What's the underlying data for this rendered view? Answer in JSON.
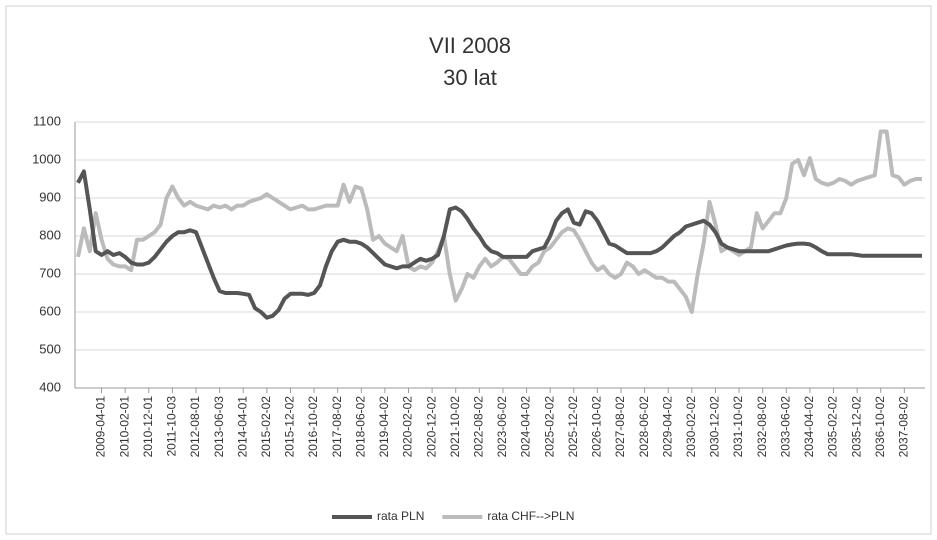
{
  "chart_data": {
    "type": "line",
    "title": "VII 2008",
    "subtitle": "30 lat",
    "categories": [
      null,
      null,
      null,
      null,
      "2009-04-01",
      null,
      null,
      null,
      "2010-02-01",
      null,
      null,
      null,
      "2010-12-01",
      null,
      null,
      null,
      "2011-10-03",
      null,
      null,
      null,
      "2012-08-01",
      null,
      null,
      null,
      "2013-06-03",
      null,
      null,
      null,
      "2014-04-01",
      null,
      null,
      null,
      "2015-02-02",
      null,
      null,
      null,
      "2015-12-02",
      null,
      null,
      null,
      "2016-10-02",
      null,
      null,
      null,
      "2017-08-02",
      null,
      null,
      null,
      "2018-06-02",
      null,
      null,
      null,
      "2019-04-02",
      null,
      null,
      null,
      "2020-02-02",
      null,
      null,
      null,
      "2020-12-02",
      null,
      null,
      null,
      "2021-10-02",
      null,
      null,
      null,
      "2022-08-02",
      null,
      null,
      null,
      "2023-06-02",
      null,
      null,
      null,
      "2024-04-02",
      null,
      null,
      null,
      "2025-02-02",
      null,
      null,
      null,
      "2025-12-02",
      null,
      null,
      null,
      "2026-10-02",
      null,
      null,
      null,
      "2027-08-02",
      null,
      null,
      null,
      "2028-06-02",
      null,
      null,
      null,
      "2029-04-02",
      null,
      null,
      null,
      "2030-02-02",
      null,
      null,
      null,
      "2030-12-02",
      null,
      null,
      null,
      "2031-10-02",
      null,
      null,
      null,
      "2032-08-02",
      null,
      null,
      null,
      "2033-06-02",
      null,
      null,
      null,
      "2034-04-02",
      null,
      null,
      null,
      "2035-02-02",
      null,
      null,
      null,
      "2035-12-02",
      null,
      null,
      null,
      "2036-10-02",
      null,
      null,
      null,
      "2037-08-02",
      null,
      null,
      null
    ],
    "series": [
      {
        "name": "rata PLN",
        "color": "#555555",
        "values": [
          940,
          970,
          870,
          760,
          750,
          760,
          750,
          755,
          745,
          730,
          725,
          725,
          730,
          745,
          765,
          785,
          800,
          810,
          810,
          815,
          810,
          770,
          730,
          690,
          655,
          650,
          650,
          650,
          648,
          645,
          610,
          600,
          585,
          590,
          605,
          635,
          648,
          648,
          648,
          645,
          650,
          670,
          720,
          760,
          785,
          790,
          785,
          785,
          780,
          770,
          755,
          740,
          725,
          720,
          715,
          720,
          720,
          730,
          740,
          735,
          740,
          750,
          800,
          870,
          875,
          865,
          845,
          820,
          800,
          775,
          760,
          755,
          745,
          745,
          745,
          745,
          745,
          760,
          765,
          770,
          800,
          840,
          860,
          870,
          835,
          830,
          865,
          860,
          840,
          810,
          780,
          775,
          765,
          755,
          755,
          755,
          755,
          755,
          760,
          770,
          785,
          800,
          810,
          825,
          830,
          835,
          840,
          830,
          810,
          780,
          770,
          765,
          760,
          760,
          760,
          760,
          760,
          760,
          765,
          770,
          775,
          778,
          780,
          780,
          778,
          770,
          760,
          752,
          752,
          752,
          752,
          752,
          750,
          748,
          748,
          748,
          748,
          748,
          748,
          748,
          748,
          748,
          748,
          748
        ]
      },
      {
        "name": "rata CHF-->PLN",
        "color": "#bbbbbb",
        "values": [
          745,
          820,
          760,
          860,
          790,
          740,
          725,
          720,
          720,
          710,
          790,
          790,
          800,
          810,
          830,
          900,
          930,
          900,
          880,
          890,
          880,
          875,
          870,
          880,
          875,
          880,
          870,
          880,
          880,
          890,
          895,
          900,
          910,
          900,
          890,
          880,
          870,
          875,
          880,
          870,
          870,
          875,
          880,
          880,
          880,
          935,
          890,
          930,
          925,
          870,
          790,
          800,
          780,
          770,
          760,
          800,
          720,
          710,
          720,
          715,
          730,
          760,
          800,
          700,
          630,
          660,
          700,
          690,
          720,
          740,
          720,
          730,
          745,
          740,
          720,
          700,
          700,
          720,
          730,
          760,
          770,
          790,
          810,
          820,
          815,
          790,
          760,
          730,
          710,
          720,
          700,
          690,
          700,
          730,
          720,
          700,
          710,
          700,
          690,
          690,
          680,
          680,
          660,
          640,
          600,
          700,
          780,
          890,
          830,
          760,
          770,
          760,
          750,
          760,
          770,
          860,
          820,
          840,
          860,
          860,
          900,
          990,
          1000,
          960,
          1005,
          950,
          940,
          935,
          940,
          950,
          945,
          935,
          945,
          950,
          955,
          960,
          1075,
          1075,
          960,
          955,
          935,
          945,
          950,
          950
        ]
      }
    ],
    "ylim": [
      400,
      1100
    ],
    "yticks": [
      400,
      500,
      600,
      700,
      800,
      900,
      1000,
      1100
    ],
    "grid": true,
    "legend": "bottom"
  }
}
